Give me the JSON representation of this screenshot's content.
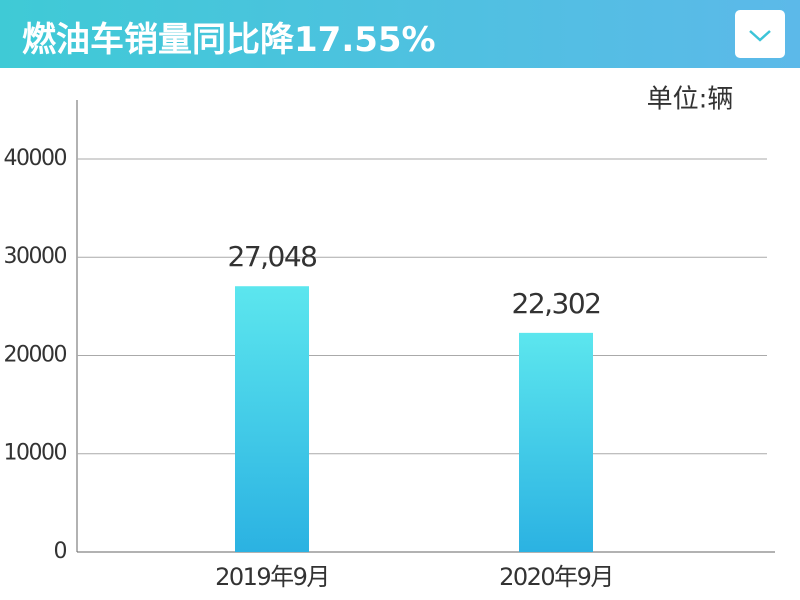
{
  "chart_data": {
    "type": "bar",
    "title": "燃油车销量同比降17.55%",
    "unit": "单位:辆",
    "categories": [
      "2019年9月",
      "2020年9月"
    ],
    "values": [
      27048,
      22302
    ],
    "value_labels": [
      "27,048",
      "22,302"
    ],
    "ylim": [
      0,
      46000
    ],
    "yticks": [
      0,
      10000,
      20000,
      30000,
      40000
    ],
    "grid": true,
    "color": [
      "#5ce6ee",
      "#2bb2e2"
    ]
  }
}
